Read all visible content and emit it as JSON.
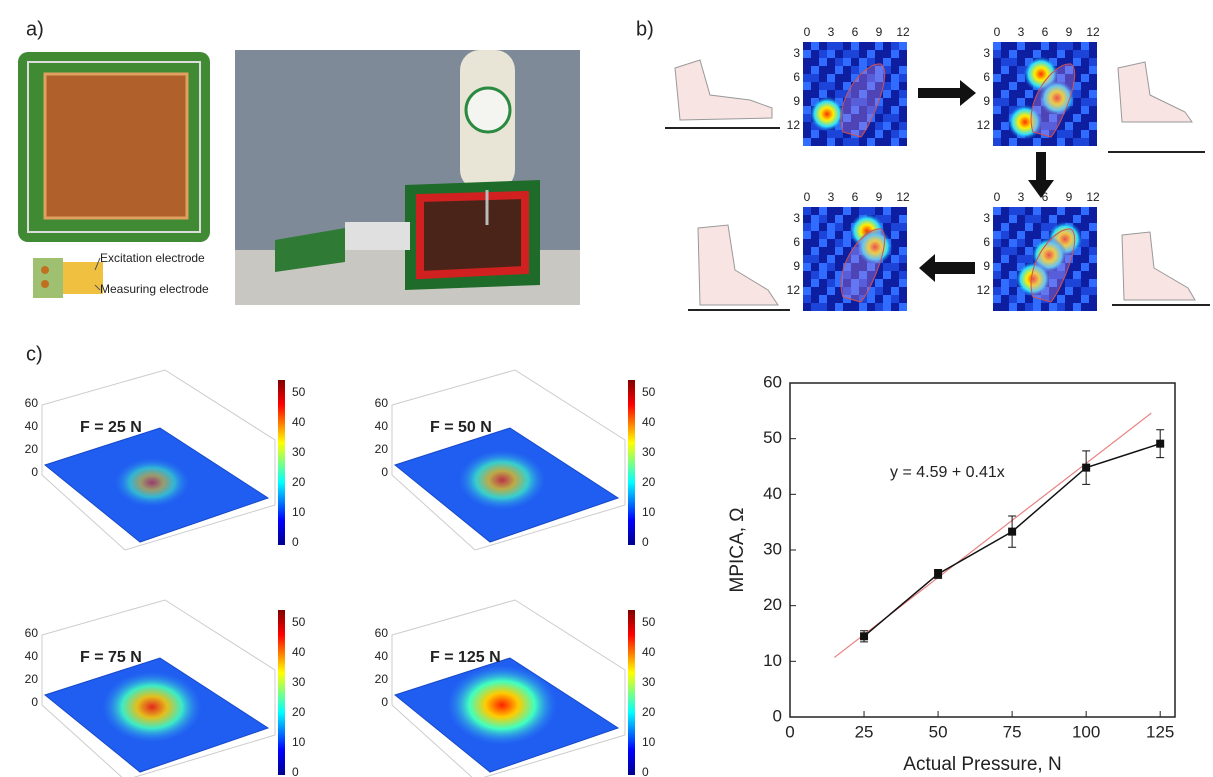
{
  "panel_a": {
    "label": "a)",
    "electrode_labels": [
      "Excitation electrode",
      "Measuring electrode"
    ]
  },
  "panel_b": {
    "label": "b)",
    "heatmap_xticks": [
      "0",
      "3",
      "6",
      "9",
      "12"
    ],
    "heatmap_yticks": [
      "3",
      "6",
      "9",
      "12"
    ]
  },
  "panel_c": {
    "label": "c)",
    "surfaces": [
      {
        "title": "F = 25 N"
      },
      {
        "title": "F = 50 N"
      },
      {
        "title": "F = 75 N"
      },
      {
        "title": "F = 125 N"
      }
    ],
    "z_ticks": [
      "0",
      "20",
      "40",
      "60"
    ],
    "colorbar_ticks": [
      "0",
      "10",
      "20",
      "30",
      "40",
      "50"
    ]
  },
  "chart_data": {
    "type": "line",
    "xlabel": "Actual Pressure, N",
    "ylabel": "MPICA, Ω",
    "annotation": "y = 4.59 + 0.41x",
    "x": [
      25,
      50,
      75,
      100,
      125
    ],
    "series": [
      {
        "color": "#111111",
        "values": [
          14.5,
          25.7,
          33.3,
          44.8,
          49.1
        ],
        "errors": [
          1.0,
          0.8,
          2.8,
          3.0,
          2.5
        ]
      }
    ],
    "fit": {
      "color": "#e88080",
      "x": [
        15,
        122
      ],
      "values": [
        10.7,
        54.6
      ]
    },
    "annotation_color": "#e02020",
    "xlim": [
      0,
      130
    ],
    "xticks": [
      0,
      25,
      50,
      75,
      100,
      125
    ],
    "ylim": [
      0,
      60
    ],
    "yticks": [
      0,
      10,
      20,
      30,
      40,
      50,
      60
    ]
  }
}
